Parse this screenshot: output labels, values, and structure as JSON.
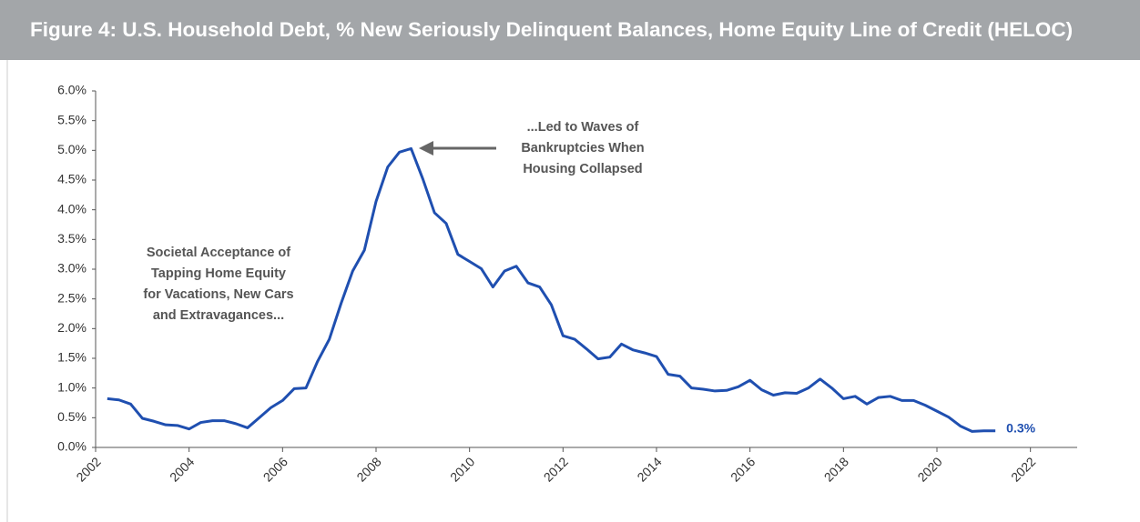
{
  "chart_data": {
    "type": "line",
    "title": "Figure 4: U.S. Household Debt, % New Seriously Delinquent Balances, Home Equity Line of Credit (HELOC)",
    "x": [
      2002.25,
      2002.5,
      2002.75,
      2003,
      2003.25,
      2003.5,
      2003.75,
      2004,
      2004.25,
      2004.5,
      2004.75,
      2005,
      2005.25,
      2005.5,
      2005.75,
      2006,
      2006.25,
      2006.5,
      2006.75,
      2007,
      2007.25,
      2007.5,
      2007.75,
      2008,
      2008.25,
      2008.5,
      2008.75,
      2009,
      2009.25,
      2009.5,
      2009.75,
      2010,
      2010.25,
      2010.5,
      2010.75,
      2011,
      2011.25,
      2011.5,
      2011.75,
      2012,
      2012.25,
      2012.5,
      2012.75,
      2013,
      2013.25,
      2013.5,
      2013.75,
      2014,
      2014.25,
      2014.5,
      2014.75,
      2015,
      2015.25,
      2015.5,
      2015.75,
      2016,
      2016.25,
      2016.5,
      2016.75,
      2017,
      2017.25,
      2017.5,
      2017.75,
      2018,
      2018.25,
      2018.5,
      2018.75,
      2019,
      2019.25,
      2019.5,
      2019.75,
      2020,
      2020.25,
      2020.5,
      2020.75,
      2021,
      2021.25
    ],
    "series": [
      {
        "color": "#1f4fb0",
        "values": [
          0.82,
          0.8,
          0.73,
          0.49,
          0.44,
          0.38,
          0.37,
          0.31,
          0.42,
          0.45,
          0.45,
          0.4,
          0.33,
          0.5,
          0.67,
          0.79,
          0.99,
          1.0,
          1.45,
          1.82,
          2.42,
          2.97,
          3.32,
          4.14,
          4.72,
          4.97,
          5.03,
          4.52,
          3.95,
          3.77,
          3.25,
          3.13,
          3.01,
          2.7,
          2.97,
          3.05,
          2.77,
          2.7,
          2.4,
          1.88,
          1.82,
          1.66,
          1.49,
          1.52,
          1.74,
          1.64,
          1.59,
          1.53,
          1.23,
          1.2,
          1.0,
          0.98,
          0.95,
          0.96,
          1.02,
          1.13,
          0.97,
          0.88,
          0.92,
          0.91,
          1.0,
          1.15,
          1.0,
          0.82,
          0.86,
          0.73,
          0.84,
          0.86,
          0.79,
          0.79,
          0.71,
          0.61,
          0.51,
          0.36,
          0.27,
          0.28,
          0.28
        ]
      }
    ],
    "end_label": "0.3%",
    "xlim": [
      2002,
      2023
    ],
    "xticks": [
      2002,
      2004,
      2006,
      2008,
      2010,
      2012,
      2014,
      2016,
      2018,
      2020,
      2022
    ],
    "ylim": [
      0,
      6
    ],
    "yticks": [
      {
        "value": 0,
        "label": "0.0%"
      },
      {
        "value": 0.5,
        "label": "0.5%"
      },
      {
        "value": 1,
        "label": "1.0%"
      },
      {
        "value": 1.5,
        "label": "1.5%"
      },
      {
        "value": 2,
        "label": "2.0%"
      },
      {
        "value": 2.5,
        "label": "2.5%"
      },
      {
        "value": 3,
        "label": "3.0%"
      },
      {
        "value": 3.5,
        "label": "3.5%"
      },
      {
        "value": 4,
        "label": "4.0%"
      },
      {
        "value": 4.5,
        "label": "4.5%"
      },
      {
        "value": 5,
        "label": "5.0%"
      },
      {
        "value": 5.5,
        "label": "5.5%"
      },
      {
        "value": 6,
        "label": "6.0%"
      }
    ],
    "annotations": [
      {
        "lines": [
          "Societal Acceptance of",
          "Tapping Home Equity",
          "for Vacations, New Cars",
          "and Extravagances..."
        ]
      },
      {
        "lines": [
          "...Led to Waves of",
          "Bankruptcies When",
          "Housing Collapsed"
        ]
      }
    ]
  }
}
